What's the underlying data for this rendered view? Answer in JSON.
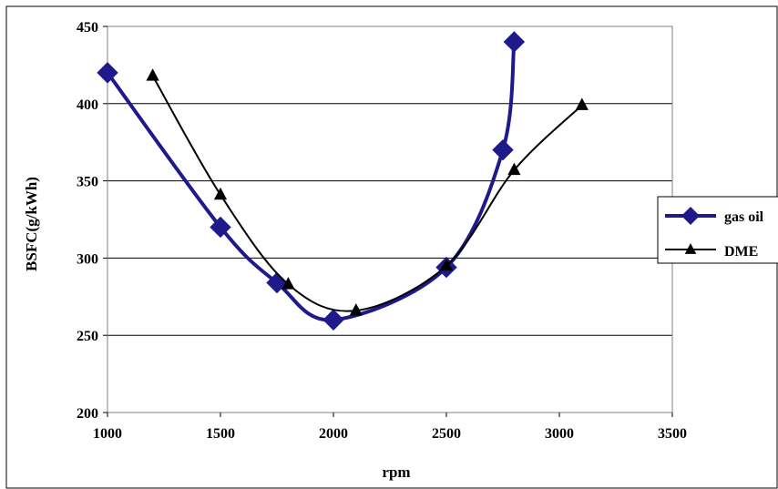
{
  "chart_data": {
    "type": "line",
    "title": "",
    "xlabel": "rpm",
    "ylabel": "BSFC(g/kWh)",
    "xlim": [
      1000,
      3500
    ],
    "ylim": [
      200,
      450
    ],
    "xticks": [
      1000,
      1500,
      2000,
      2500,
      3000,
      3500
    ],
    "yticks": [
      200,
      250,
      300,
      350,
      400,
      450
    ],
    "grid": "horizontal",
    "legend_position": "right",
    "series": [
      {
        "name": "gas oil",
        "color": "#1f1a8c",
        "marker": "diamond",
        "x": [
          1000,
          1500,
          1750,
          2000,
          2500,
          2750,
          2800
        ],
        "y": [
          420,
          320,
          284,
          260,
          294,
          370,
          440
        ]
      },
      {
        "name": "DME",
        "color": "#000000",
        "marker": "triangle",
        "x": [
          1200,
          1500,
          1800,
          2100,
          2500,
          2800,
          3100
        ],
        "y": [
          418,
          341,
          283,
          266,
          295,
          357,
          399
        ]
      }
    ]
  }
}
